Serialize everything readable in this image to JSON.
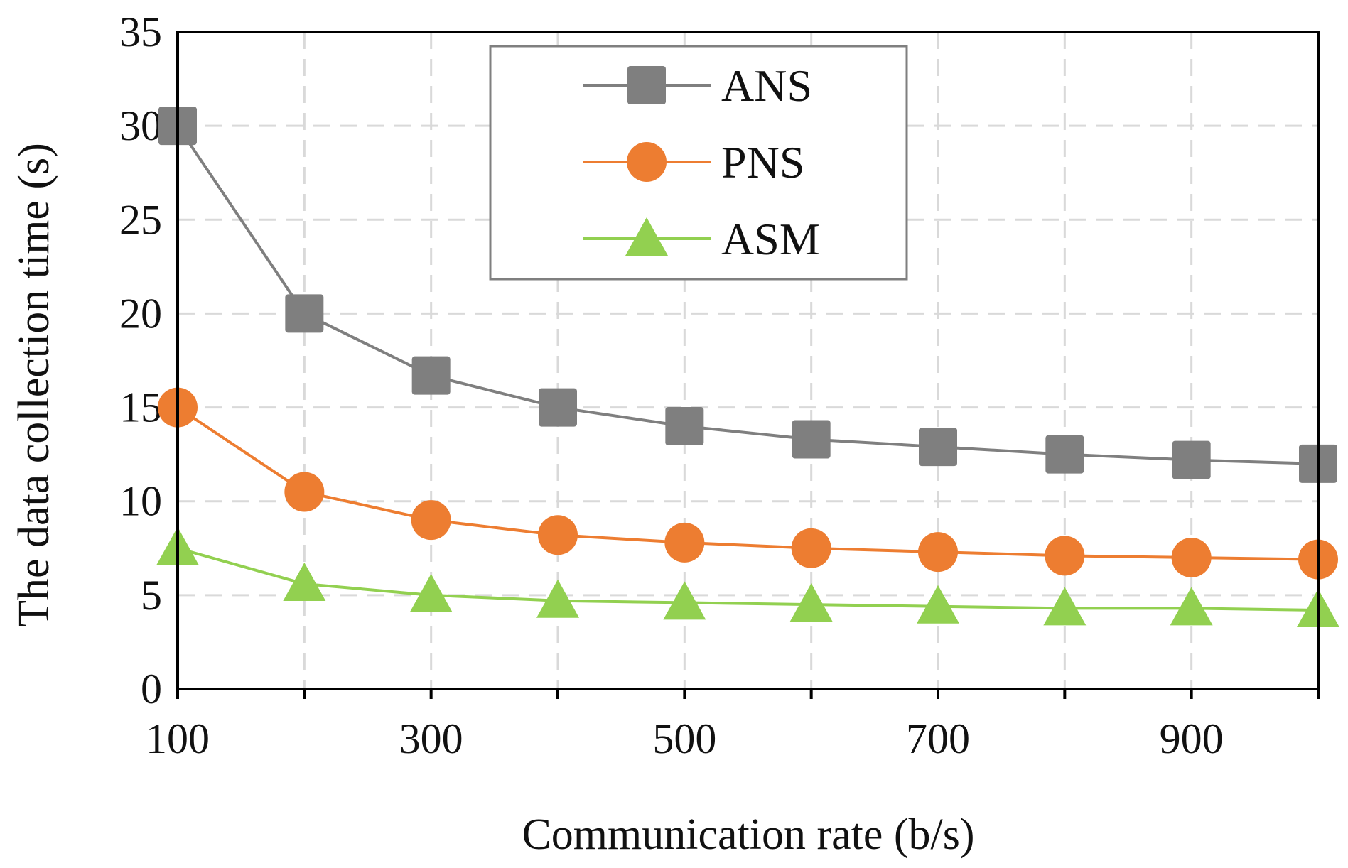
{
  "chart_data": {
    "type": "line",
    "title": "",
    "xlabel": "Communication rate (b/s)",
    "ylabel": "The data collection time (s)",
    "xlim": [
      100,
      1000
    ],
    "ylim": [
      0,
      35
    ],
    "x": [
      100,
      200,
      300,
      400,
      500,
      600,
      700,
      800,
      900,
      1000
    ],
    "x_ticks": [
      100,
      300,
      500,
      700,
      900
    ],
    "y_ticks": [
      0,
      5,
      10,
      15,
      20,
      25,
      30,
      35
    ],
    "grid": true,
    "legend_position": "top-center",
    "series": [
      {
        "name": "ANS",
        "marker": "square",
        "line_color": "#7f7f7f",
        "marker_color": "#7f7f7f",
        "values": [
          30,
          20,
          16.7,
          15,
          14,
          13.3,
          12.9,
          12.5,
          12.2,
          12
        ]
      },
      {
        "name": "PNS",
        "marker": "circle",
        "line_color": "#ed7d31",
        "marker_color": "#ed7d31",
        "values": [
          15,
          10.5,
          9,
          8.2,
          7.8,
          7.5,
          7.3,
          7.1,
          7.0,
          6.9
        ]
      },
      {
        "name": "ASM",
        "marker": "triangle",
        "line_color": "#92d050",
        "marker_color": "#92d050",
        "values": [
          7.5,
          5.6,
          5.0,
          4.7,
          4.6,
          4.5,
          4.4,
          4.3,
          4.3,
          4.2
        ]
      }
    ]
  }
}
